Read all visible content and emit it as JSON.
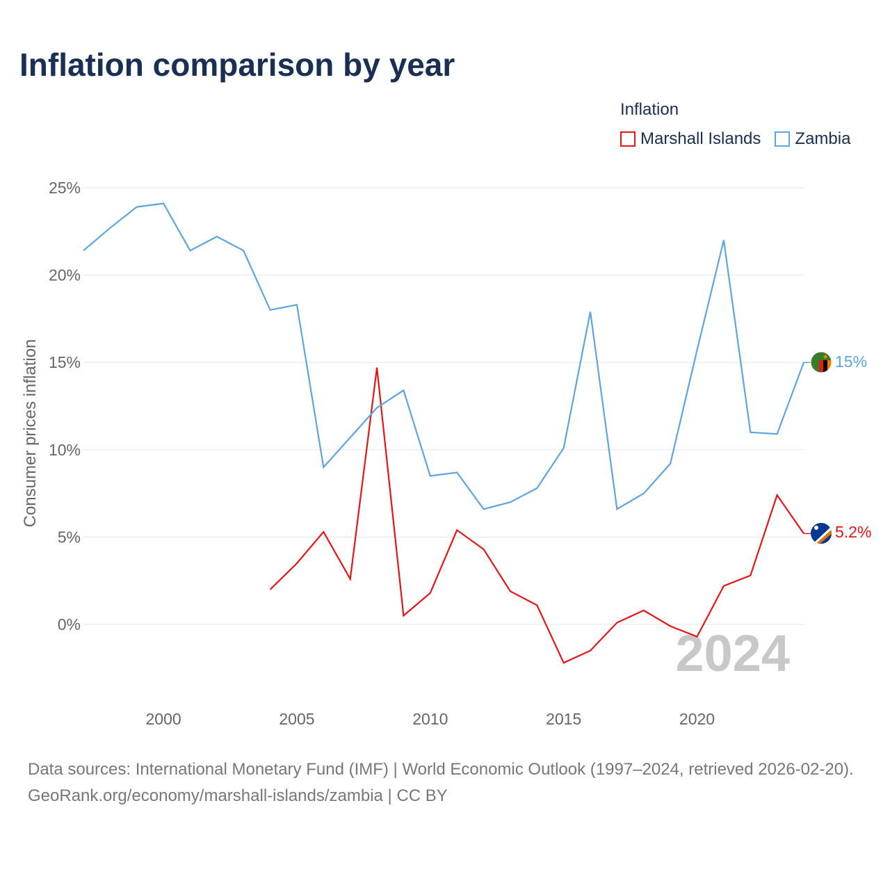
{
  "title": "Inflation comparison by year",
  "legend": {
    "title": "Inflation",
    "items": [
      {
        "label": "Marshall Islands",
        "color": "#e81414"
      },
      {
        "label": "Zambia",
        "color": "#5ba5e4"
      }
    ]
  },
  "watermark_year": "2024",
  "footer": {
    "sources": "Data sources: International Monetary Fund (IMF) | World Economic Outlook (1997–2024, retrieved 2026-02-20).",
    "credit": "GeoRank.org/economy/marshall-islands/zambia | CC BY"
  },
  "chart_data": {
    "type": "line",
    "title": "Inflation comparison by year",
    "xlabel": "",
    "ylabel": "Consumer prices inflation",
    "xlim": [
      1997,
      2024
    ],
    "ylim": [
      -4.4,
      25
    ],
    "yticks": [
      0,
      5,
      10,
      15,
      20,
      25
    ],
    "ytick_labels": [
      "0%",
      "5%",
      "10%",
      "15%",
      "20%",
      "25%"
    ],
    "xticks": [
      2000,
      2005,
      2010,
      2015,
      2020
    ],
    "xtick_labels": [
      "2000",
      "2005",
      "2010",
      "2015",
      "2020"
    ],
    "grid": true,
    "legend_position": "top-right",
    "series": [
      {
        "name": "Marshall Islands",
        "color": "#e81414",
        "end_label": "5.2%",
        "x": [
          2004,
          2005,
          2006,
          2007,
          2008,
          2009,
          2010,
          2011,
          2012,
          2013,
          2014,
          2015,
          2016,
          2017,
          2018,
          2019,
          2020,
          2021,
          2022,
          2023,
          2024
        ],
        "values": [
          2.0,
          3.5,
          5.3,
          2.6,
          14.7,
          0.5,
          1.8,
          5.4,
          4.3,
          1.9,
          1.1,
          -2.2,
          -1.5,
          0.1,
          0.8,
          -0.1,
          -0.7,
          2.2,
          2.8,
          7.4,
          5.2
        ]
      },
      {
        "name": "Zambia",
        "color": "#5ba5e4",
        "end_label": "15%",
        "x": [
          1997,
          1998,
          1999,
          2000,
          2001,
          2002,
          2003,
          2004,
          2005,
          2006,
          2007,
          2008,
          2009,
          2010,
          2011,
          2012,
          2013,
          2014,
          2015,
          2016,
          2017,
          2018,
          2019,
          2020,
          2021,
          2022,
          2023,
          2024
        ],
        "values": [
          21.4,
          22.7,
          23.9,
          24.1,
          21.4,
          22.2,
          21.4,
          18.0,
          18.3,
          9.0,
          10.7,
          12.4,
          13.4,
          8.5,
          8.7,
          6.6,
          7.0,
          7.8,
          10.1,
          17.9,
          6.6,
          7.5,
          9.2,
          15.7,
          22.0,
          11.0,
          10.9,
          15.0
        ]
      }
    ]
  }
}
